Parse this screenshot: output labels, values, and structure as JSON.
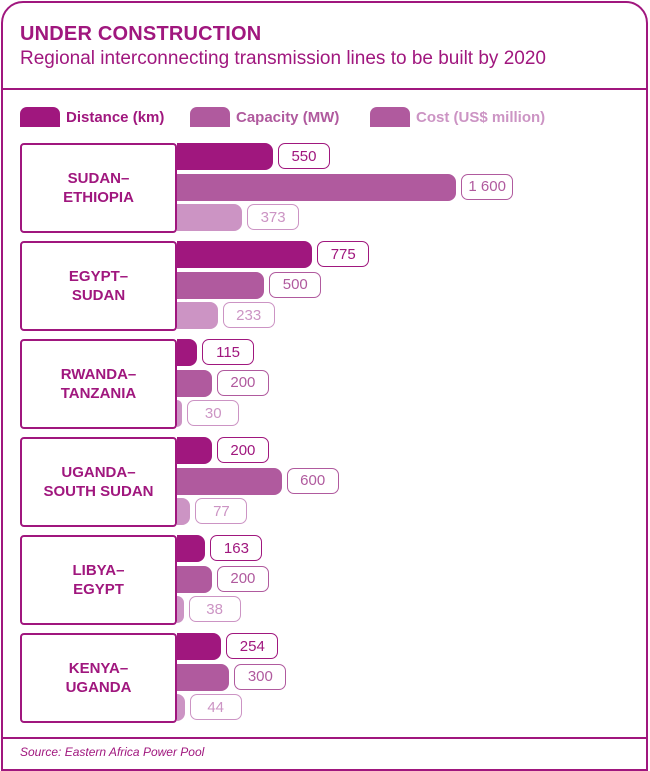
{
  "header": {
    "title": "UNDER CONSTRUCTION",
    "subtitle": "Regional interconnecting transmission lines to be built by 2020"
  },
  "footer": {
    "source": "Source: Eastern Africa Power Pool"
  },
  "colors": {
    "distance": "#a0177e",
    "capacity": "#b05a9e",
    "cost": "#cc94c4",
    "cost_label": "#cc94c4"
  },
  "chart_data": {
    "type": "bar",
    "orientation": "horizontal",
    "title": "UNDER CONSTRUCTION",
    "subtitle": "Regional interconnecting transmission lines to be built by 2020",
    "legend_position": "top-left",
    "categories": [
      "SUDAN–\nETHIOPIA",
      "EGYPT–\nSUDAN",
      "RWANDA–\nTANZANIA",
      "UGANDA–\nSOUTH SUDAN",
      "LIBYA–\nEGYPT",
      "KENYA–\nUGANDA"
    ],
    "series": [
      {
        "name": "Distance (km)",
        "key": "distance",
        "values": [
          550,
          775,
          115,
          200,
          163,
          254
        ],
        "labels": [
          "550",
          "775",
          "115",
          "200",
          "163",
          "254"
        ]
      },
      {
        "name": "Capacity (MW)",
        "key": "capacity",
        "values": [
          1600,
          500,
          200,
          600,
          200,
          300
        ],
        "labels": [
          "1 600",
          "500",
          "200",
          "600",
          "200",
          "300"
        ]
      },
      {
        "name": "Cost (US$ million)",
        "key": "cost",
        "values": [
          373,
          233,
          30,
          77,
          38,
          44
        ],
        "labels": [
          "373",
          "233",
          "30",
          "77",
          "38",
          "44"
        ]
      }
    ]
  }
}
